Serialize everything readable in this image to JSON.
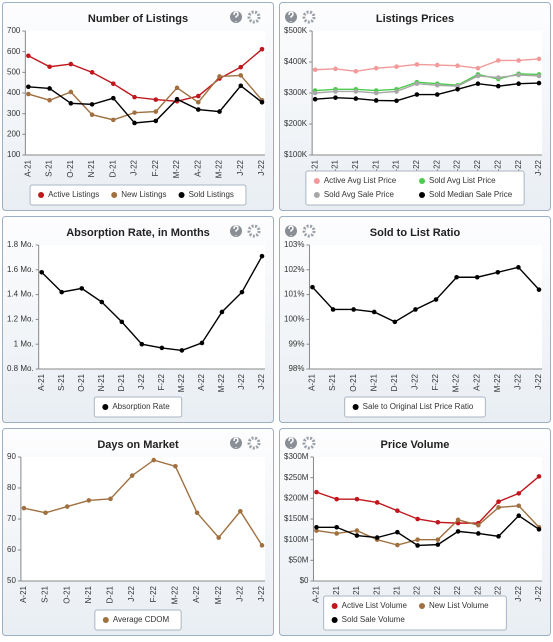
{
  "chart_data": [
    {
      "type": "line",
      "title": "Number of Listings",
      "categories": [
        "A-21",
        "S-21",
        "O-21",
        "N-21",
        "D-21",
        "J-22",
        "F-22",
        "M-22",
        "A-22",
        "M-22",
        "J-22",
        "J-22"
      ],
      "ylim": [
        100,
        700
      ],
      "yticks": [
        100,
        200,
        300,
        400,
        500,
        600,
        700
      ],
      "grid": false,
      "series": [
        {
          "name": "Active Listings",
          "color": "#c0161c",
          "values": [
            580,
            527,
            540,
            500,
            445,
            380,
            368,
            360,
            385,
            470,
            525,
            612
          ]
        },
        {
          "name": "New Listings",
          "color": "#a07040",
          "values": [
            395,
            365,
            405,
            295,
            270,
            305,
            310,
            425,
            355,
            480,
            485,
            365
          ]
        },
        {
          "name": "Sold Listings",
          "color": "#000000",
          "values": [
            430,
            422,
            350,
            345,
            375,
            255,
            265,
            370,
            320,
            310,
            435,
            355
          ]
        }
      ]
    },
    {
      "type": "line",
      "title": "Listings Prices",
      "categories": [
        "A-21",
        "S-21",
        "O-21",
        "N-21",
        "D-21",
        "J-22",
        "F-22",
        "M-22",
        "A-22",
        "M-22",
        "J-22",
        "J-22"
      ],
      "ylim": [
        100000,
        500000
      ],
      "yticks": [
        {
          "value": 100000,
          "label": "$100K"
        },
        {
          "value": 200000,
          "label": "$200K"
        },
        {
          "value": 300000,
          "label": "$300K"
        },
        {
          "value": 400000,
          "label": "$400K"
        },
        {
          "value": 500000,
          "label": "$500K"
        }
      ],
      "grid": false,
      "series": [
        {
          "name": "Active Avg List Price",
          "color": "#f29a9a",
          "values": [
            375000,
            378000,
            370000,
            380000,
            385000,
            392000,
            390000,
            388000,
            380000,
            405000,
            405000,
            410000
          ]
        },
        {
          "name": "Sold Avg List Price",
          "color": "#4ccc4c",
          "values": [
            308000,
            312000,
            312000,
            308000,
            312000,
            335000,
            330000,
            325000,
            360000,
            345000,
            362000,
            360000
          ]
        },
        {
          "name": "Sold Avg Sale Price",
          "color": "#a8a8a8",
          "values": [
            300000,
            305000,
            305000,
            300000,
            305000,
            330000,
            325000,
            322000,
            355000,
            350000,
            358000,
            355000
          ]
        },
        {
          "name": "Sold Median Sale Price",
          "color": "#000000",
          "values": [
            280000,
            285000,
            282000,
            276000,
            275000,
            295000,
            295000,
            312000,
            330000,
            322000,
            330000,
            332000
          ]
        }
      ]
    },
    {
      "type": "line",
      "title": "Absorption Rate, in Months",
      "categories": [
        "A-21",
        "S-21",
        "O-21",
        "N-21",
        "D-21",
        "J-22",
        "F-22",
        "M-22",
        "A-22",
        "M-22",
        "J-22",
        "J-22"
      ],
      "ylim": [
        0.8,
        1.8
      ],
      "yticks": [
        {
          "value": 0.8,
          "label": "0.8 Mo."
        },
        {
          "value": 1,
          "label": "1 Mo."
        },
        {
          "value": 1.2,
          "label": "1.2 Mo."
        },
        {
          "value": 1.4,
          "label": "1.4 Mo."
        },
        {
          "value": 1.6,
          "label": "1.6 Mo."
        },
        {
          "value": 1.8,
          "label": "1.8 Mo."
        }
      ],
      "grid": false,
      "series": [
        {
          "name": "Absorption Rate",
          "color": "#000000",
          "values": [
            1.58,
            1.42,
            1.45,
            1.34,
            1.18,
            1.0,
            0.97,
            0.95,
            1.01,
            1.26,
            1.42,
            1.71
          ]
        }
      ]
    },
    {
      "type": "line",
      "title": "Sold to List Ratio",
      "categories": [
        "A-21",
        "S-21",
        "O-21",
        "N-21",
        "D-21",
        "J-22",
        "F-22",
        "M-22",
        "A-22",
        "M-22",
        "J-22",
        "J-22"
      ],
      "ylim": [
        98,
        103
      ],
      "yticks": [
        {
          "value": 98,
          "label": "98%"
        },
        {
          "value": 99,
          "label": "99%"
        },
        {
          "value": 100,
          "label": "100%"
        },
        {
          "value": 101,
          "label": "101%"
        },
        {
          "value": 102,
          "label": "102%"
        },
        {
          "value": 103,
          "label": "103%"
        }
      ],
      "grid": false,
      "series": [
        {
          "name": "Sale to Original List Price Ratio",
          "color": "#000000",
          "values": [
            101.3,
            100.4,
            100.4,
            100.3,
            99.9,
            100.4,
            100.8,
            101.7,
            101.7,
            101.9,
            102.1,
            101.2
          ]
        }
      ]
    },
    {
      "type": "line",
      "title": "Days on Market",
      "categories": [
        "A-21",
        "S-21",
        "O-21",
        "N-21",
        "D-21",
        "J-22",
        "F-22",
        "M-22",
        "A-22",
        "M-22",
        "J-22",
        "J-22"
      ],
      "ylim": [
        50,
        90
      ],
      "yticks": [
        50,
        60,
        70,
        80,
        90
      ],
      "grid": false,
      "series": [
        {
          "name": "Average CDOM",
          "color": "#a07040",
          "values": [
            73.5,
            72,
            74,
            76,
            76.5,
            84,
            89,
            87,
            72,
            64,
            72.5,
            61.5
          ]
        }
      ]
    },
    {
      "type": "line",
      "title": "Price Volume",
      "categories": [
        "A-21",
        "S-21",
        "O-21",
        "N-21",
        "D-21",
        "J-22",
        "F-22",
        "M-22",
        "A-22",
        "M-22",
        "J-22",
        "J-22"
      ],
      "ylim": [
        0,
        300000000
      ],
      "yticks": [
        {
          "value": 0,
          "label": "$0"
        },
        {
          "value": 50000000,
          "label": "$50M"
        },
        {
          "value": 100000000,
          "label": "$100M"
        },
        {
          "value": 150000000,
          "label": "$150M"
        },
        {
          "value": 200000000,
          "label": "$200M"
        },
        {
          "value": 250000000,
          "label": "$250M"
        },
        {
          "value": 300000000,
          "label": "$300M"
        }
      ],
      "grid": false,
      "series": [
        {
          "name": "Active List Volume",
          "color": "#c0161c",
          "values": [
            215000000,
            198000000,
            198000000,
            190000000,
            170000000,
            150000000,
            142000000,
            140000000,
            140000000,
            192000000,
            212000000,
            253000000
          ]
        },
        {
          "name": "New List Volume",
          "color": "#a07040",
          "values": [
            122000000,
            115000000,
            122000000,
            100000000,
            87000000,
            100000000,
            100000000,
            148000000,
            135000000,
            178000000,
            182000000,
            130000000
          ]
        },
        {
          "name": "Sold Sale Volume",
          "color": "#000000",
          "values": [
            130000000,
            130000000,
            110000000,
            105000000,
            118000000,
            86000000,
            88000000,
            120000000,
            115000000,
            108000000,
            158000000,
            125000000
          ]
        }
      ]
    }
  ]
}
